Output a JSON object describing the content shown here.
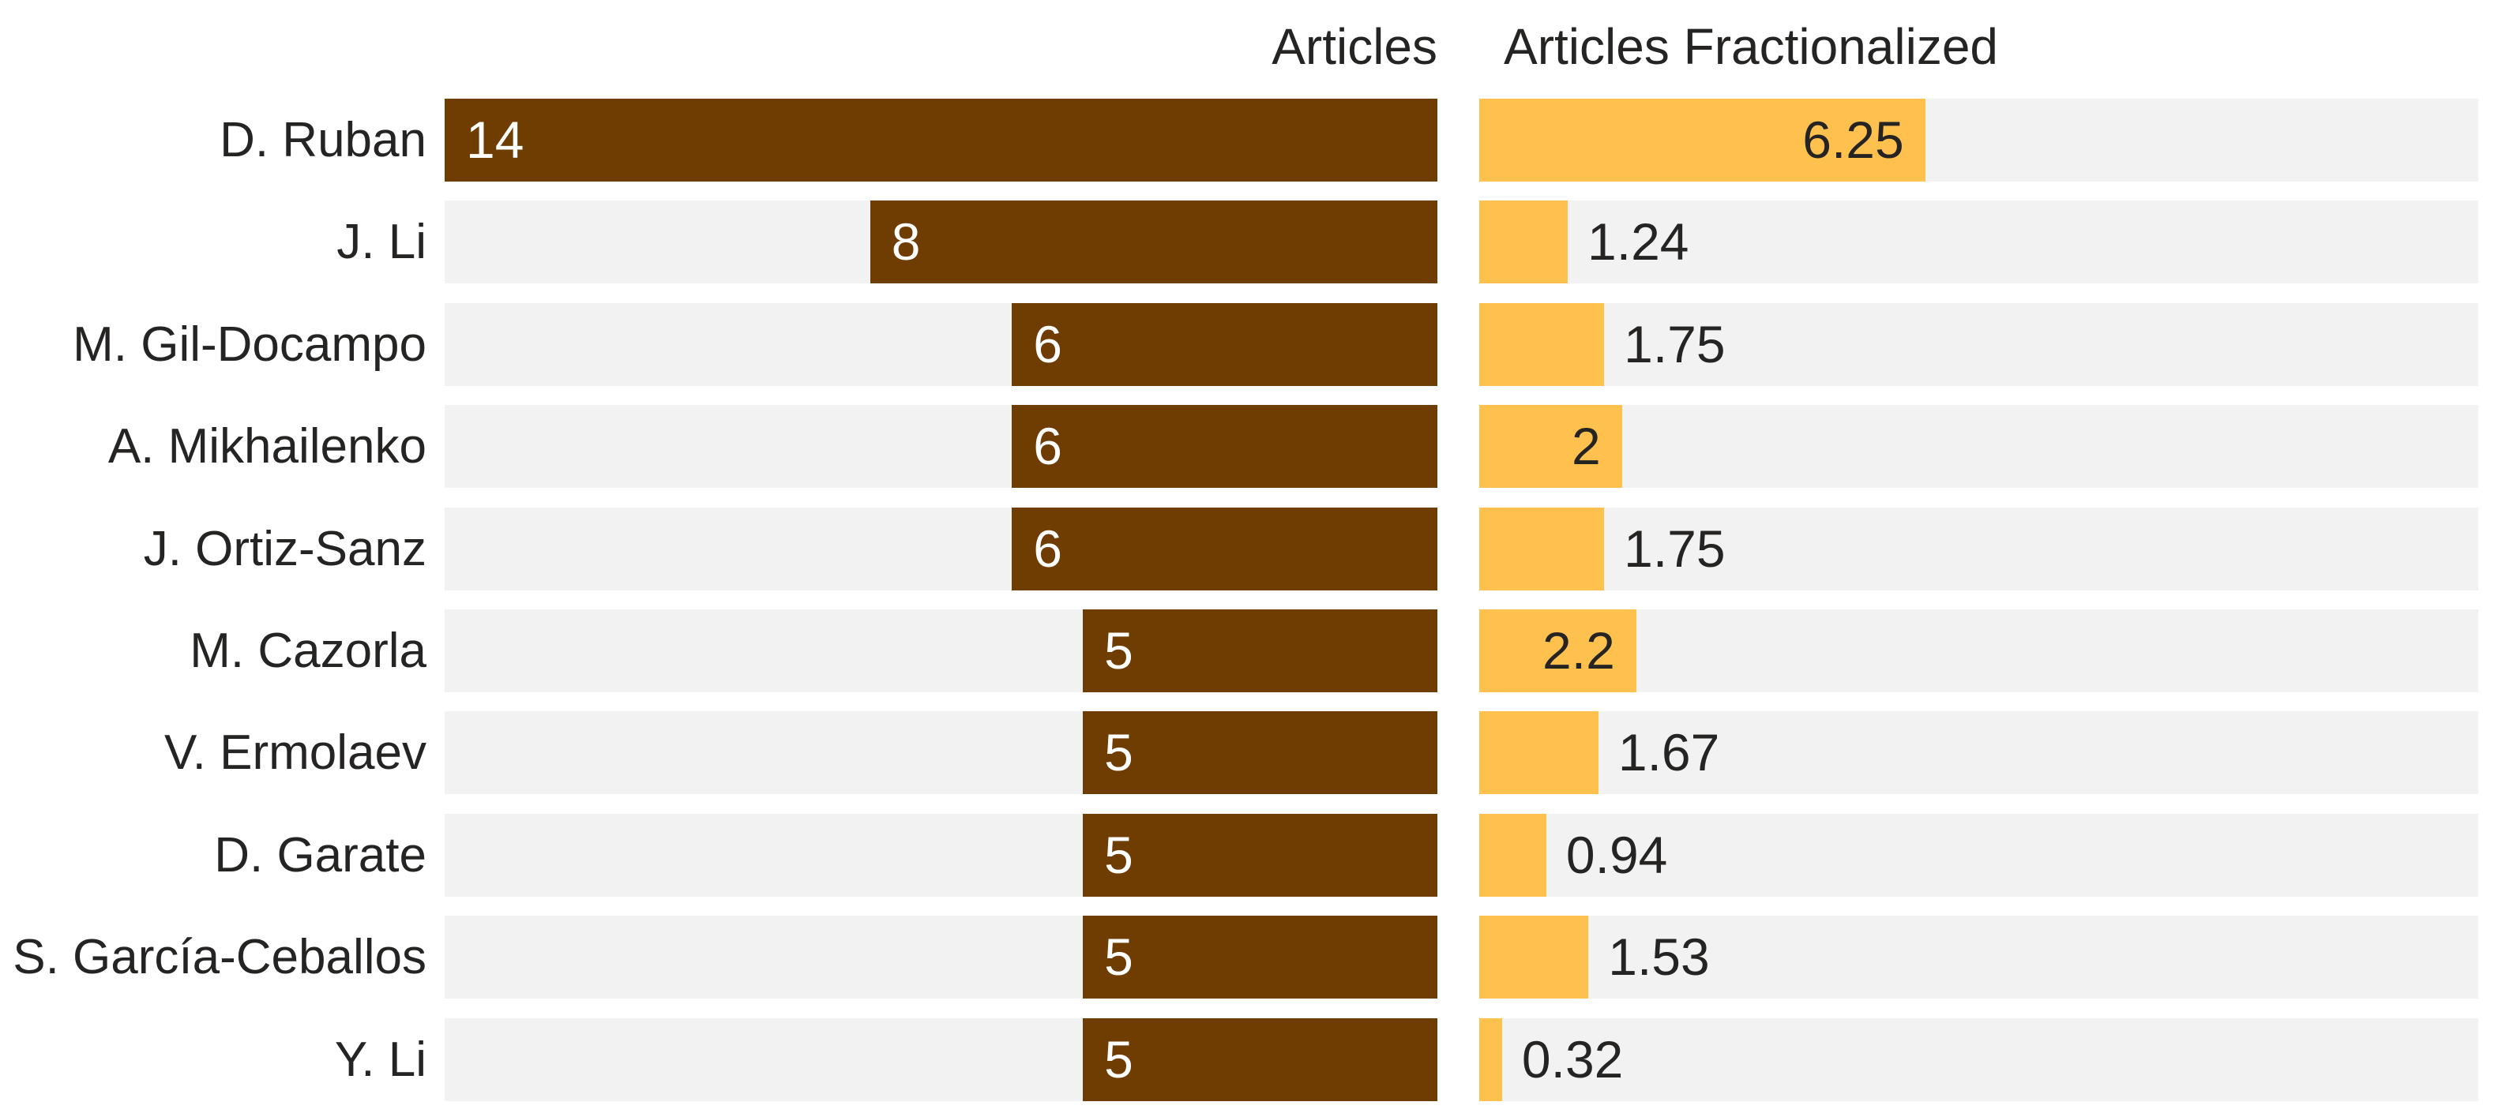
{
  "chart_data": {
    "type": "bar",
    "orientation": "horizontal",
    "title": "",
    "xlabel": "",
    "ylabel": "",
    "xlim": [
      0,
      14
    ],
    "grid": false,
    "legend_position": "column-headers",
    "track_color": "#F2F2F2",
    "background_color": "#FFFFFF",
    "categories": [
      "D. Ruban",
      "J. Li",
      "M. Gil-Docampo",
      "A. Mikhailenko",
      "J. Ortiz-Sanz",
      "M. Cazorla",
      "V. Ermolaev",
      "D. Garate",
      "S. García-Ceballos",
      "Y. Li"
    ],
    "series": [
      {
        "name": "Articles",
        "color": "#6F3C01",
        "label_color": "#FFFFFF",
        "label_placement": "inside-end",
        "values": [
          14,
          8,
          6,
          6,
          6,
          5,
          5,
          5,
          5,
          5
        ]
      },
      {
        "name": "Articles Fractionalized",
        "color": "#FEC14D",
        "label_color": "#252423",
        "label_placement": "end-auto",
        "values": [
          6.25,
          1.24,
          1.75,
          2,
          1.75,
          2.2,
          1.67,
          0.94,
          1.53,
          0.32
        ]
      }
    ]
  }
}
